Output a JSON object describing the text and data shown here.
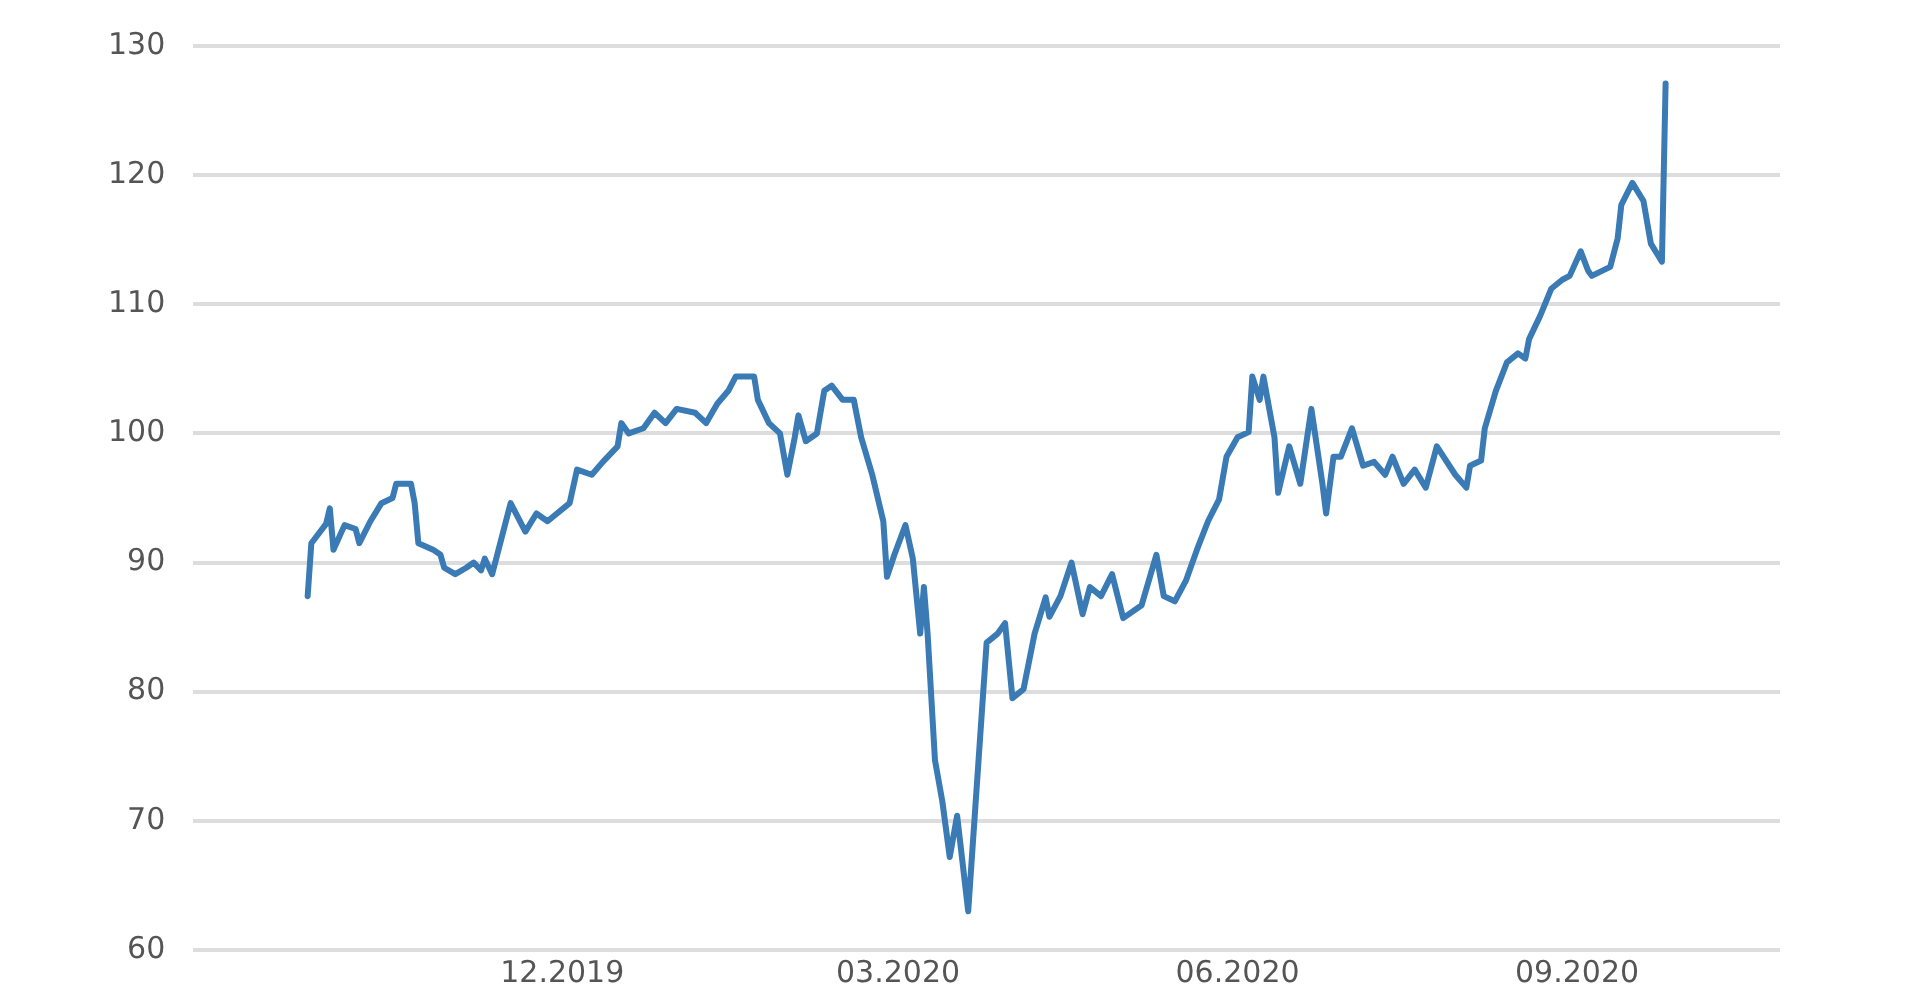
{
  "chart_data": {
    "type": "line",
    "x": [
      "2019-09-23",
      "2019-09-24",
      "2019-09-28",
      "2019-09-29",
      "2019-09-30",
      "2019-10-03",
      "2019-10-06",
      "2019-10-07",
      "2019-10-10",
      "2019-10-13",
      "2019-10-16",
      "2019-10-17",
      "2019-10-21",
      "2019-10-22",
      "2019-10-23",
      "2019-10-27",
      "2019-10-29",
      "2019-10-30",
      "2019-11-02",
      "2019-11-05",
      "2019-11-07",
      "2019-11-09",
      "2019-11-10",
      "2019-11-12",
      "2019-11-17",
      "2019-11-21",
      "2019-11-24",
      "2019-11-27",
      "2019-12-03",
      "2019-12-05",
      "2019-12-09",
      "2019-12-12",
      "2019-12-16",
      "2019-12-17",
      "2019-12-19",
      "2019-12-23",
      "2019-12-26",
      "2019-12-29",
      "2020-01-01",
      "2020-01-06",
      "2020-01-09",
      "2020-01-12",
      "2020-01-15",
      "2020-01-17",
      "2020-01-22",
      "2020-01-23",
      "2020-01-26",
      "2020-01-29",
      "2020-01-31",
      "2020-02-02",
      "2020-02-03",
      "2020-02-05",
      "2020-02-08",
      "2020-02-10",
      "2020-02-12",
      "2020-02-15",
      "2020-02-18",
      "2020-02-20",
      "2020-02-23",
      "2020-02-26",
      "2020-02-27",
      "2020-02-29",
      "2020-03-03",
      "2020-03-05",
      "2020-03-07",
      "2020-03-08",
      "2020-03-09",
      "2020-03-11",
      "2020-03-13",
      "2020-03-15",
      "2020-03-17",
      "2020-03-20",
      "2020-03-25",
      "2020-03-28",
      "2020-03-30",
      "2020-04-01",
      "2020-04-04",
      "2020-04-07",
      "2020-04-10",
      "2020-04-11",
      "2020-04-14",
      "2020-04-17",
      "2020-04-20",
      "2020-04-22",
      "2020-04-25",
      "2020-04-28",
      "2020-05-01",
      "2020-05-06",
      "2020-05-10",
      "2020-05-12",
      "2020-05-15",
      "2020-05-18",
      "2020-05-21",
      "2020-05-24",
      "2020-05-27",
      "2020-05-29",
      "2020-06-01",
      "2020-06-04",
      "2020-06-05",
      "2020-06-07",
      "2020-06-08",
      "2020-06-11",
      "2020-06-12",
      "2020-06-15",
      "2020-06-18",
      "2020-06-21",
      "2020-06-24",
      "2020-06-25",
      "2020-06-27",
      "2020-06-29",
      "2020-07-02",
      "2020-07-05",
      "2020-07-08",
      "2020-07-11",
      "2020-07-13",
      "2020-07-16",
      "2020-07-19",
      "2020-07-22",
      "2020-07-25",
      "2020-07-30",
      "2020-08-02",
      "2020-08-03",
      "2020-08-06",
      "2020-08-07",
      "2020-08-10",
      "2020-08-13",
      "2020-08-16",
      "2020-08-18",
      "2020-08-19",
      "2020-08-22",
      "2020-08-25",
      "2020-08-28",
      "2020-08-30",
      "2020-09-02",
      "2020-09-04",
      "2020-09-05",
      "2020-09-10",
      "2020-09-12",
      "2020-09-13",
      "2020-09-16",
      "2020-09-19",
      "2020-09-21",
      "2020-09-24",
      "2020-09-25"
    ],
    "series": [
      {
        "color": "#3a7ab5",
        "values": [
          87.4,
          91.5,
          93,
          94.2,
          91,
          92.9,
          92.6,
          91.5,
          93.2,
          94.6,
          95,
          96.1,
          96.1,
          94.6,
          91.5,
          91,
          90.6,
          89.6,
          89.1,
          89.6,
          90,
          89.4,
          90.3,
          89.1,
          94.6,
          92.4,
          93.8,
          93.2,
          94.6,
          97.2,
          96.8,
          97.8,
          99,
          100.8,
          100,
          100.4,
          101.6,
          100.8,
          101.9,
          101.6,
          100.8,
          102.3,
          103.3,
          104.4,
          104.4,
          102.6,
          100.8,
          100,
          96.8,
          99.7,
          101.4,
          99.4,
          100,
          103.3,
          103.7,
          102.6,
          102.6,
          99.7,
          96.8,
          93.2,
          88.9,
          90.6,
          92.9,
          90.3,
          84.5,
          88.1,
          84.5,
          74.7,
          71.5,
          67.2,
          70.4,
          63,
          83.8,
          84.5,
          85.3,
          79.5,
          80.2,
          84.5,
          87.3,
          85.8,
          87.4,
          90,
          86,
          88.1,
          87.4,
          89.1,
          85.7,
          86.7,
          90.6,
          87.4,
          87,
          88.6,
          91,
          93.2,
          94.9,
          98.2,
          99.7,
          100.1,
          104.4,
          102.6,
          104.4,
          99.7,
          95.4,
          99,
          96.1,
          101.9,
          96.1,
          93.8,
          98.2,
          98.2,
          100.4,
          97.5,
          97.8,
          96.8,
          98.2,
          96.1,
          97.2,
          95.8,
          99,
          96.8,
          95.8,
          97.5,
          97.9,
          100.4,
          103.3,
          105.5,
          106.2,
          105.8,
          107.3,
          109.1,
          111.2,
          111.9,
          112.2,
          114.1,
          112.6,
          112.2,
          112.9,
          115.1,
          117.7,
          119.4,
          118,
          114.7,
          113.3,
          127.1
        ]
      }
    ],
    "xlim": [
      "2019-08-23",
      "2020-10-26"
    ],
    "xticks": [
      {
        "value": "2019-12-01",
        "label": "12.2019"
      },
      {
        "value": "2020-03-01",
        "label": "03.2020"
      },
      {
        "value": "2020-06-01",
        "label": "06.2020"
      },
      {
        "value": "2020-09-01",
        "label": "09.2020"
      }
    ],
    "ylim": [
      60,
      130
    ],
    "yticks": [
      60,
      70,
      80,
      90,
      100,
      110,
      120,
      130
    ],
    "grid": "y",
    "legend": false,
    "marker": "none",
    "line_style": "solid"
  }
}
